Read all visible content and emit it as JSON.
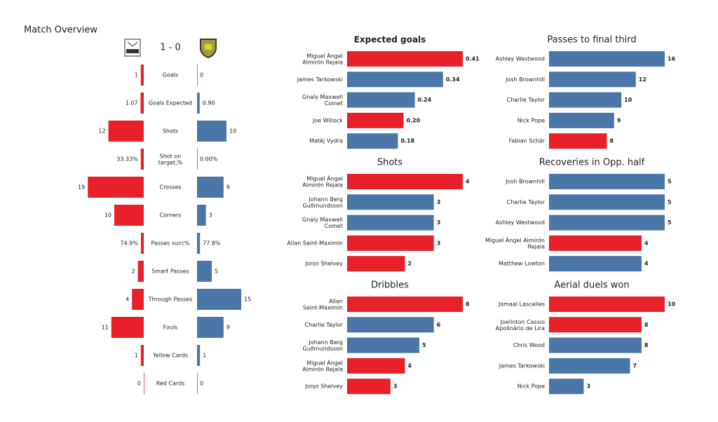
{
  "chart_data": [
    {
      "type": "butterfly",
      "title": "Match Overview",
      "score": "1 - 0",
      "categories": [
        "Goals",
        "Goals Expected",
        "Shots",
        "Shot on\ntarget,%",
        "Crosses",
        "Corners",
        "Passes succ%",
        "Smart Passes",
        "Through Passes",
        "Fouls",
        "Yellow Cards",
        "Red Cards"
      ],
      "series": [
        {
          "color": "#e8202a",
          "values": [
            1,
            1.07,
            12,
            33.33,
            19,
            10,
            74.9,
            2,
            4,
            11,
            1,
            0
          ],
          "value_labels": [
            "1",
            "1.07",
            "12",
            "33.33%",
            "19",
            "10",
            "74.9%",
            "2",
            "4",
            "11",
            "1",
            "0"
          ]
        },
        {
          "color": "#4a76a8",
          "values": [
            0,
            0.9,
            10,
            0,
            9,
            3,
            77.8,
            5,
            15,
            9,
            1,
            0
          ],
          "value_labels": [
            "0",
            "0.90",
            "10",
            "0.00%",
            "9",
            "3",
            "77.8%",
            "5",
            "15",
            "9",
            "1",
            "0"
          ]
        }
      ]
    },
    {
      "type": "hbar",
      "title": "Expected goals",
      "categories": [
        "Miguel Ángel\nAlmirón Rejala",
        "James  Tarkowski",
        "Gnaly Maxwell\nComet",
        "Joe Willock",
        "Matěj Vydra"
      ],
      "values": [
        0.41,
        0.34,
        0.24,
        0.2,
        0.18
      ],
      "value_labels": [
        "0.41",
        "0.34",
        "0.24",
        "0.20",
        "0.18"
      ],
      "colors": [
        "#e8202a",
        "#4a76a8",
        "#4a76a8",
        "#e8202a",
        "#4a76a8"
      ]
    },
    {
      "type": "hbar",
      "title": "Passes to final third",
      "categories": [
        "Ashley Westwood",
        "Josh Brownhill",
        "Charlie Taylor",
        "Nick Pope",
        "Fabian Schär"
      ],
      "values": [
        16,
        12,
        10,
        9,
        8
      ],
      "colors": [
        "#4a76a8",
        "#4a76a8",
        "#4a76a8",
        "#4a76a8",
        "#e8202a"
      ]
    },
    {
      "type": "hbar",
      "title": "Shots",
      "categories": [
        "Miguel Ángel\nAlmirón Rejala",
        "Johann  Berg\nGuðmundsson",
        "Gnaly Maxwell\nComet",
        "Allan Saint-Maximin",
        "Jonjo Shelvey"
      ],
      "values": [
        4,
        3,
        3,
        3,
        2
      ],
      "colors": [
        "#e8202a",
        "#4a76a8",
        "#4a76a8",
        "#e8202a",
        "#e8202a"
      ]
    },
    {
      "type": "hbar",
      "title": "Recoveries in Opp. half",
      "categories": [
        "Josh Brownhill",
        "Charlie Taylor",
        "Ashley Westwood",
        "Miguel Ángel Almirón\nRejala",
        "Matthew Lowton"
      ],
      "values": [
        5,
        5,
        5,
        4,
        4
      ],
      "colors": [
        "#4a76a8",
        "#4a76a8",
        "#4a76a8",
        "#e8202a",
        "#4a76a8"
      ]
    },
    {
      "type": "hbar",
      "title": "Dribbles",
      "categories": [
        "Allan\nSaint-Maximin",
        "Charlie Taylor",
        "Johann  Berg\nGuðmundsson",
        "Miguel Ángel\nAlmirón Rejala",
        "Jonjo Shelvey"
      ],
      "values": [
        8,
        6,
        5,
        4,
        3
      ],
      "colors": [
        "#e8202a",
        "#4a76a8",
        "#4a76a8",
        "#e8202a",
        "#e8202a"
      ]
    },
    {
      "type": "hbar",
      "title": "Aerial duels won",
      "categories": [
        "Jamaal Lascelles",
        "Joelinton Cassio\nApolinário de Lira",
        "Chris Wood",
        "James  Tarkowski",
        "Nick Pope"
      ],
      "values": [
        10,
        8,
        8,
        7,
        3
      ],
      "colors": [
        "#e8202a",
        "#e8202a",
        "#4a76a8",
        "#4a76a8",
        "#4a76a8"
      ]
    }
  ]
}
